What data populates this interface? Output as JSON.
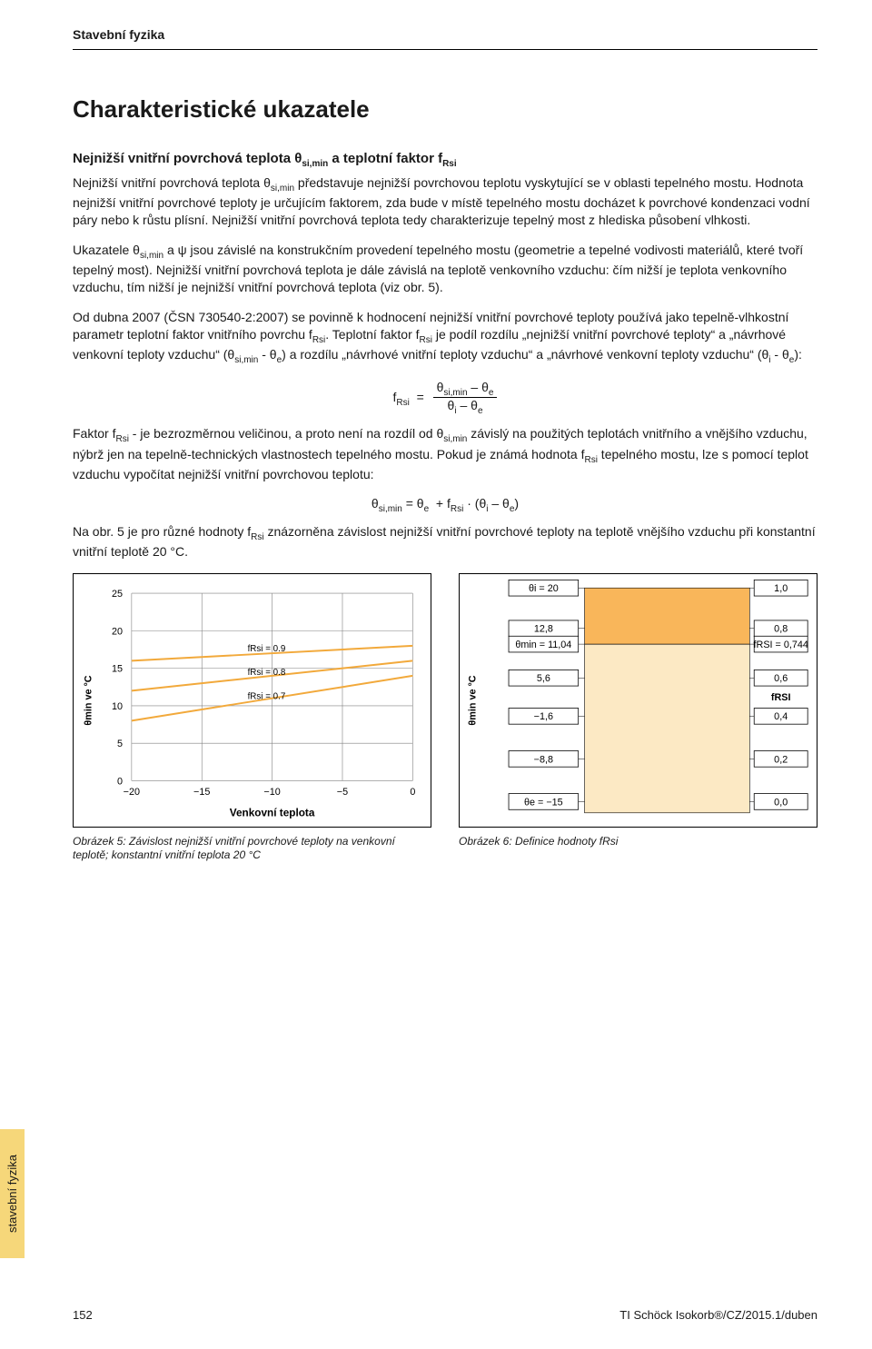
{
  "header": {
    "category": "Stavební fyzika"
  },
  "title": "Charakteristické ukazatele",
  "section1": {
    "heading_html": "Nejnižší vnitřní povrchová teplota θ<sub class='sub'>si,min</sub> a teplotní faktor f<sub class='sub'>Rsi</sub>",
    "p1_html": "Nejnižší vnitřní povrchová teplota θ<sub class='sub'>si,min</sub> představuje nejnižší povrchovou teplotu vyskytující se v oblasti tepelného mostu. Hodnota nejnižší vnitřní povrchové teploty je určujícím faktorem, zda bude v místě tepelného mostu docházet k povrchové kondenzaci vodní páry nebo k růstu plísní. Nejnižší vnitřní povrchová teplota tedy charakterizuje tepelný most z hlediska působení vlhkosti.",
    "p2_html": "Ukazatele θ<sub class='sub'>si,min</sub> a ψ jsou závislé na konstrukčním provedení tepelného mostu (geometrie a tepelné vodivosti materiálů, které tvoří tepelný most). Nejnižší vnitřní povrchová teplota je dále závislá na teplotě venkovního vzduchu: čím nižší je teplota venkovního vzduchu, tím nižší je nejnižší vnitřní povrchová teplota (viz obr. 5).",
    "p3_html": "Od dubna 2007 (ČSN 730540-2:2007) se povinně k hodnocení nejnižší vnitřní povrchové teploty používá jako tepelně-vlhkostní parametr teplotní faktor vnitřního povrchu f<sub class='sub'>Rsi</sub>. Teplotní faktor f<sub class='sub'>Rsi</sub> je podíl rozdílu „nejnižší vnitřní povrchové teploty“ a „návrhové venkovní teploty vzduchu“ (θ<sub class='sub'>si,min</sub> - θ<sub class='sub'>e</sub>) a rozdílu „návrhové vnitřní teploty vzduchu“ a „návrhové venkovní teploty vzduchu“ (θ<sub class='sub'>i</sub> - θ<sub class='sub'>e</sub>):",
    "formula1_html": "f<sub class='sub'>Rsi</sub> &nbsp;=&nbsp; <span class='frac'><span class='num'>θ<sub class='sub'>si,min</sub> – θ<sub class='sub'>e</sub></span><span class='den'>θ<sub class='sub'>i</sub> – θ<sub class='sub'>e</sub></span></span>",
    "p4_html": "Faktor f<sub class='sub'>Rsi</sub> - je bezrozměrnou veličinou, a proto není na rozdíl od θ<sub class='sub'>si,min</sub> závislý na použitých teplotách vnitřního a vnějšího vzduchu, nýbrž jen na tepelně-technických vlastnostech tepelného mostu. Pokud je známá hodnota f<sub class='sub'>Rsi</sub> tepelného mostu, lze s pomocí teplot vzduchu vypočítat nejnižší vnitřní povrchovou teplotu:",
    "formula2_html": "θ<sub class='sub'>si,min</sub> = θ<sub class='sub'>e</sub> &nbsp;+ f<sub class='sub'>Rsi</sub> · (θ<sub class='sub'>i</sub> – θ<sub class='sub'>e</sub>)",
    "p5_html": "Na obr. 5 je pro různé hodnoty f<sub class='sub'>Rsi</sub> znázorněna závislost nejnižší vnitřní povrchové teploty na teplotě vnějšího vzduchu při konstantní vnitřní teplotě 20 °C."
  },
  "chart5": {
    "type": "line",
    "title": "",
    "y_axis_label": "θmin ve °C",
    "x_axis_label": "Venkovní teplota",
    "xlim": [
      -20,
      0
    ],
    "ylim": [
      0,
      25
    ],
    "xticks": [
      -20,
      -15,
      -10,
      -5,
      0
    ],
    "yticks": [
      0,
      5,
      10,
      15,
      20,
      25
    ],
    "grid_color": "#808080",
    "background_color": "#ffffff",
    "border_color": "#000000",
    "line_color": "#f2a93b",
    "line_width": 2,
    "series": [
      {
        "label": "fRsi = 0.9",
        "p1": [
          -20,
          16
        ],
        "p2": [
          0,
          18
        ],
        "label_x": -12
      },
      {
        "label": "fRsi = 0.8",
        "p1": [
          -20,
          12
        ],
        "p2": [
          0,
          16
        ],
        "label_x": -12
      },
      {
        "label": "fRsi = 0.7",
        "p1": [
          -20,
          8
        ],
        "p2": [
          0,
          14
        ],
        "label_x": -12
      }
    ],
    "caption": "Obrázek 5: Závislost nejnižší vnitřní povrchové teploty na venkovní teplotě; konstantní vnitřní teplota 20 °C"
  },
  "chart6": {
    "type": "diagram",
    "y_axis_label": "θmin ve °C",
    "background_color": "#ffffff",
    "fill_color_top": "#f9b65a",
    "fill_color_bottom": "#fce9c4",
    "border_color": "#000000",
    "box_text_color": "#000000",
    "boxes_left": [
      {
        "label": "θi  = 20",
        "y": 0.0
      },
      {
        "label": "12,8",
        "y": 0.18
      },
      {
        "label": "θmin = 11,04",
        "y": 0.25
      },
      {
        "label": "5,6",
        "y": 0.4
      },
      {
        "label": "−1,6",
        "y": 0.57
      },
      {
        "label": "−8,8",
        "y": 0.76
      },
      {
        "label": "θe  = −15",
        "y": 0.95
      }
    ],
    "boxes_right": [
      {
        "label": "1,0",
        "y": 0.0
      },
      {
        "label": "0,8",
        "y": 0.18
      },
      {
        "label": "fRSI = 0,744",
        "y": 0.25
      },
      {
        "label": "0,6",
        "y": 0.4
      },
      {
        "label": "fRSI",
        "y": 0.485,
        "noborder": true
      },
      {
        "label": "0,4",
        "y": 0.57
      },
      {
        "label": "0,2",
        "y": 0.76
      },
      {
        "label": "0,0",
        "y": 0.95
      }
    ],
    "caption": "Obrázek 6: Definice hodnoty fRsi"
  },
  "sideTab": "stavební fyzika",
  "footer": {
    "pageNum": "152",
    "docRef": "TI Schöck Isokorb®/CZ/2015.1/duben"
  },
  "colors": {
    "accent_yellow": "#f6d77a",
    "chart_orange": "#f2a93b",
    "fill_peach": "#fce9c4",
    "fill_deep": "#f9b65a"
  }
}
